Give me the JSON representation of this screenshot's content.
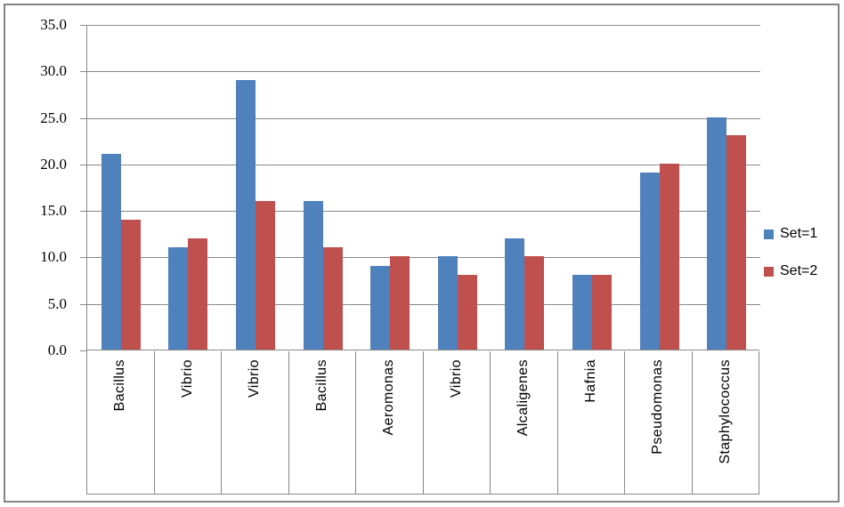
{
  "chart_data": {
    "type": "bar",
    "title": "",
    "xlabel": "",
    "ylabel": "",
    "categories": [
      "Bacillus",
      "Vibrio",
      "Vibrio",
      "Bacillus",
      "Aeromonas",
      "Vibrio",
      "Alcaligenes",
      "Hafnia",
      "Pseudomonas",
      "Staphylococcus"
    ],
    "series": [
      {
        "name": "Set=1",
        "color": "#4F81BD",
        "values": [
          21,
          11,
          29,
          16,
          9,
          10,
          12,
          8,
          19,
          25
        ]
      },
      {
        "name": "Set=2",
        "color": "#C0504D",
        "values": [
          14,
          12,
          16,
          11,
          10,
          8,
          10,
          8,
          20,
          23
        ]
      }
    ],
    "ylim": [
      0,
      35
    ],
    "ytick_step": 5,
    "ytick_labels": [
      "35.0",
      "30.0",
      "25.0",
      "20.0",
      "15.0",
      "10.0",
      "5.0",
      "0.0"
    ],
    "grid": true,
    "legend_position": "right"
  },
  "colors": {
    "series1": "#4F81BD",
    "series2": "#C0504D",
    "gridline": "#898989",
    "frame_border": "#848484",
    "text": "#000000",
    "background": "#FFFFFF"
  }
}
